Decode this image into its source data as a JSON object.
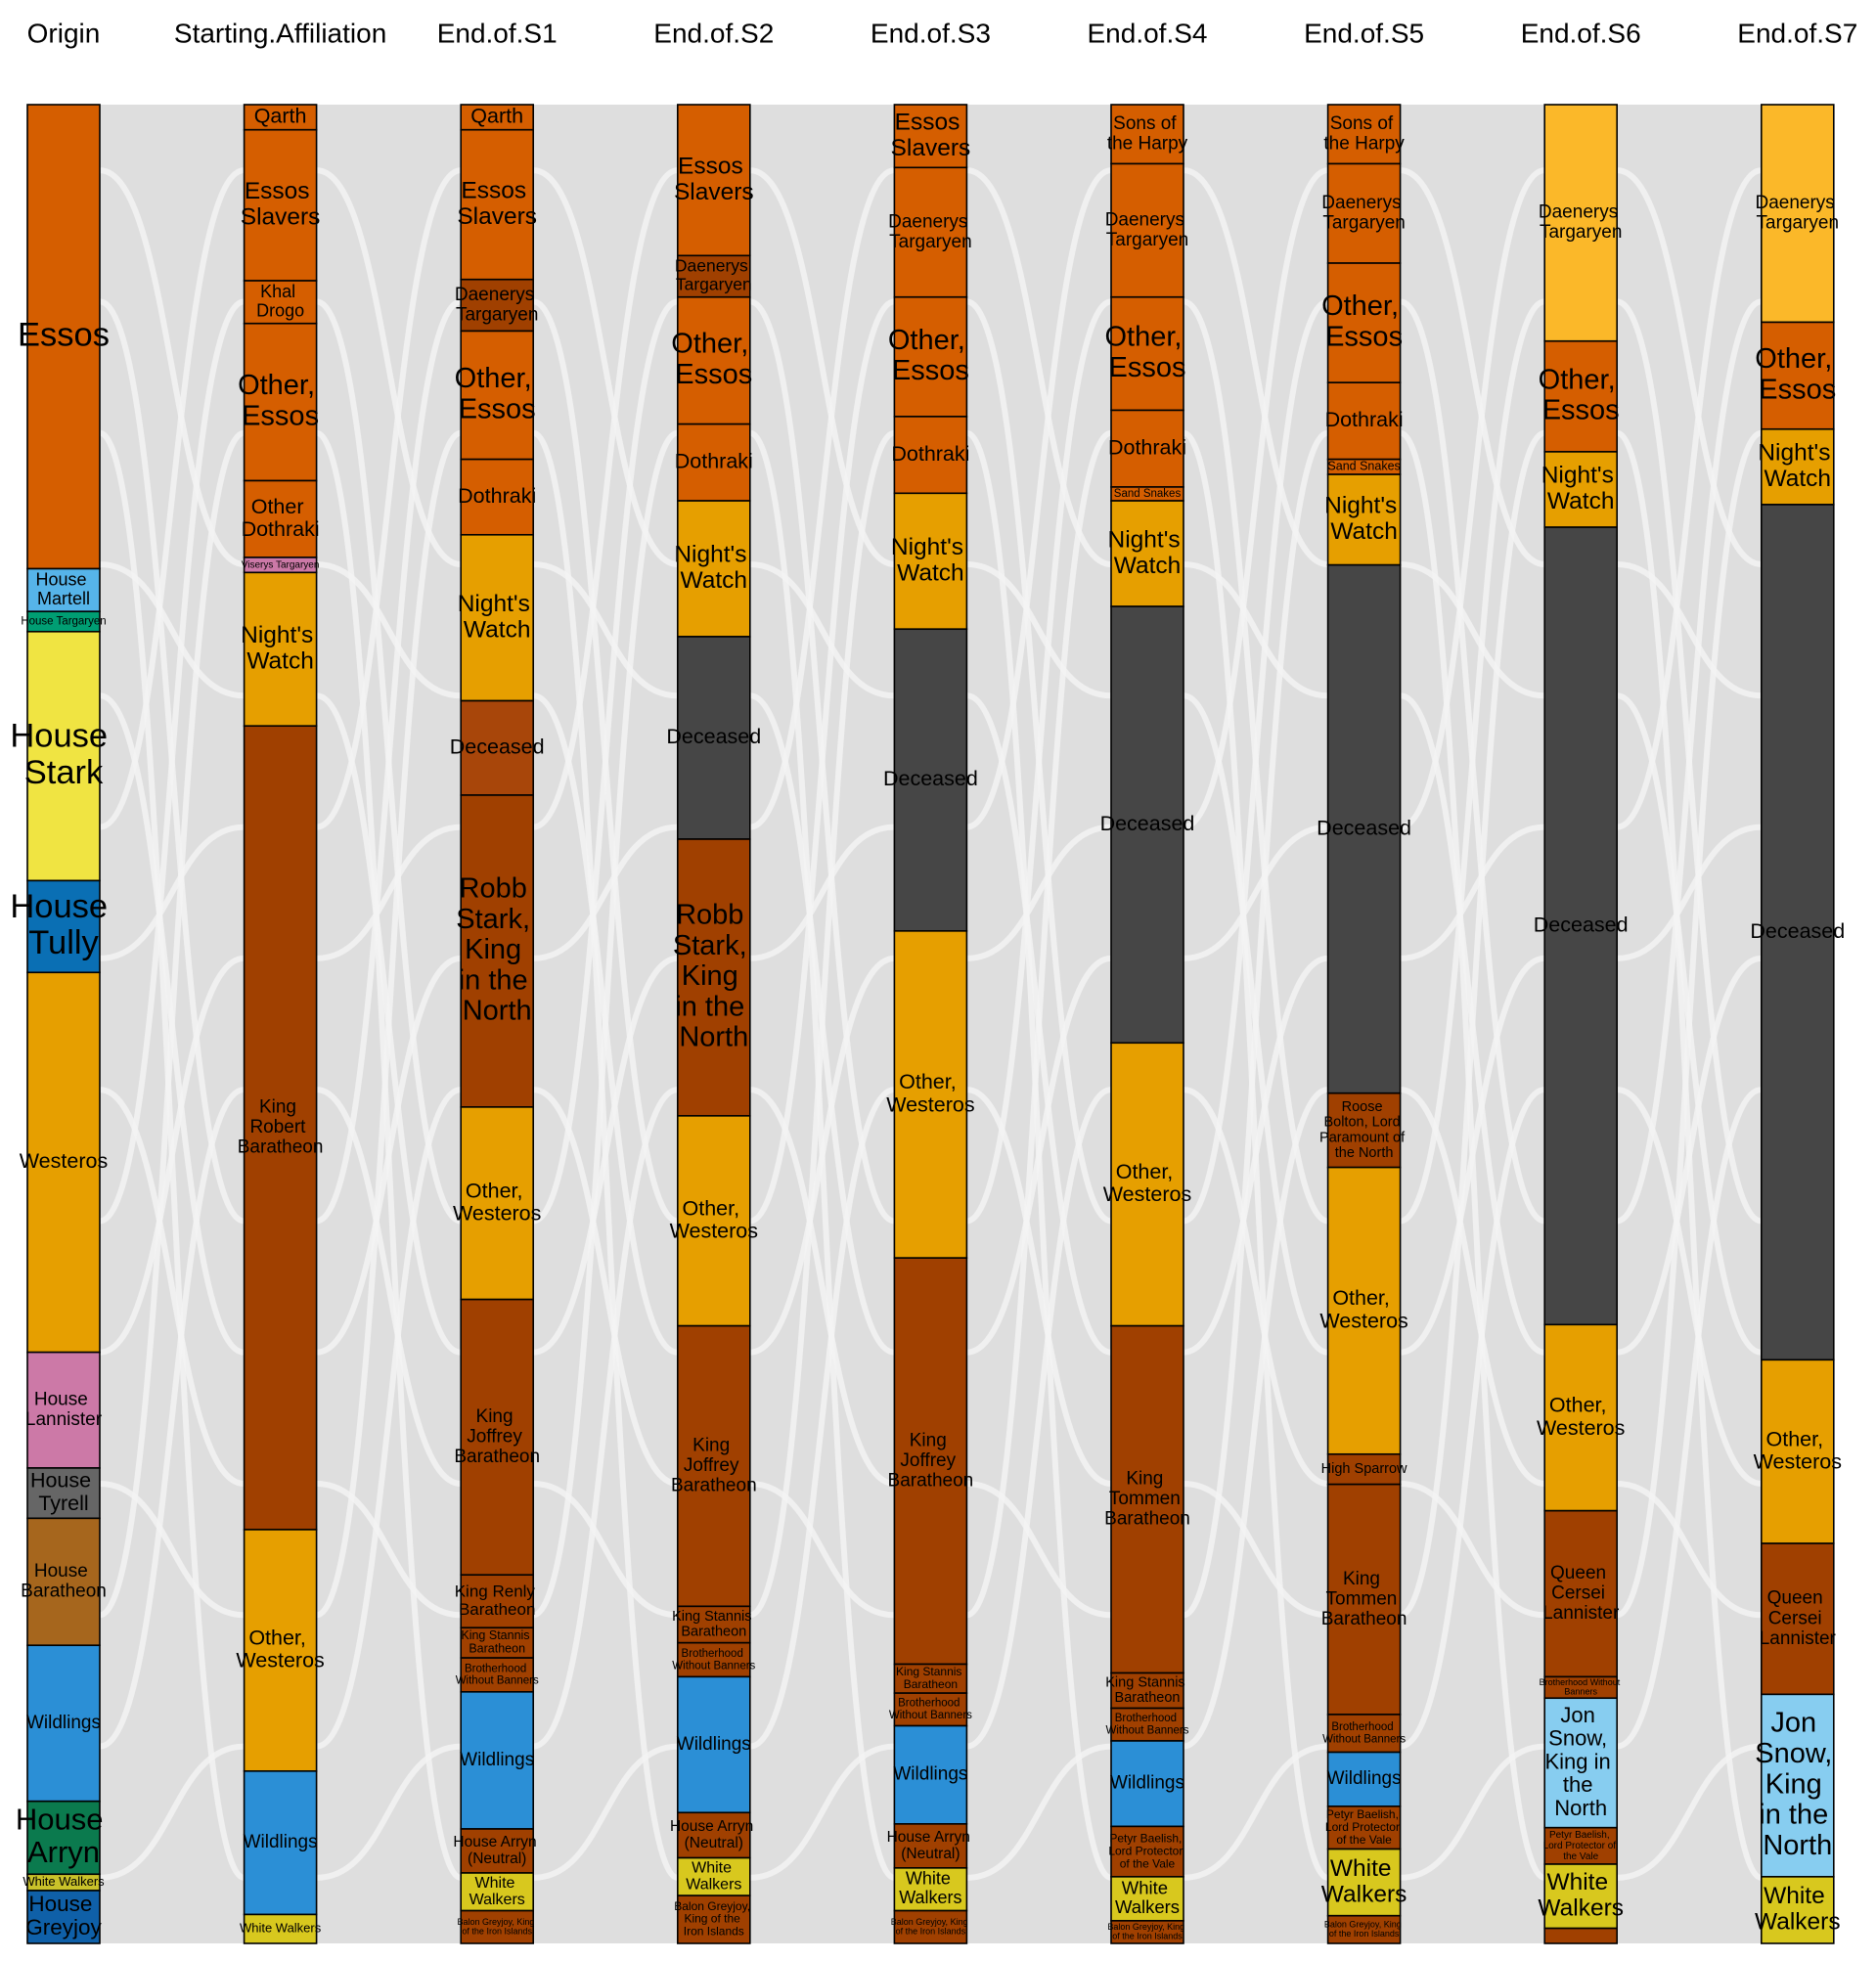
{
  "chart_data": {
    "type": "alluvial",
    "columns": [
      {
        "name": "Origin",
        "nodes": [
          {
            "label": "Essos",
            "value": 369,
            "color": "#d55e00"
          },
          {
            "label": "House Martell",
            "value": 34,
            "color": "#56b4e9"
          },
          {
            "label": "House Targaryen",
            "value": 16,
            "color": "#009e73"
          },
          {
            "label": "House Stark",
            "value": 198,
            "color": "#f0e442"
          },
          {
            "label": "House Tully",
            "value": 73,
            "color": "#0a6fb4"
          },
          {
            "label": "Westeros",
            "value": 302,
            "color": "#e69f00"
          },
          {
            "label": "House Lannister",
            "value": 92,
            "color": "#cc79a7"
          },
          {
            "label": "House Tyrell",
            "value": 40,
            "color": "#666666"
          },
          {
            "label": "House Baratheon",
            "value": 101,
            "color": "#a6661d"
          },
          {
            "label": "Wildlings",
            "value": 124,
            "color": "#2b8fd6"
          },
          {
            "label": "House Arryn",
            "value": 58,
            "color": "#0b7a4e"
          },
          {
            "label": "White Walkers",
            "value": 13,
            "color": "#c9c22a"
          },
          {
            "label": "House Greyjoy",
            "value": 42,
            "color": "#0f60a8"
          }
        ]
      },
      {
        "name": "Starting.Affiliation",
        "nodes": [
          {
            "label": "Qarth",
            "value": 20,
            "color": "#d55e00"
          },
          {
            "label": "Essos Slavers",
            "value": 120,
            "color": "#d55e00"
          },
          {
            "label": "Khal Drogo",
            "value": 34,
            "color": "#d55e00"
          },
          {
            "label": "Other, Essos",
            "value": 125,
            "color": "#d55e00"
          },
          {
            "label": "Other Dothraki",
            "value": 61,
            "color": "#d55e00"
          },
          {
            "label": "Viserys Targaryen",
            "value": 12,
            "color": "#cc79a7"
          },
          {
            "label": "Night's Watch",
            "value": 122,
            "color": "#e69f00"
          },
          {
            "label": "King Robert Baratheon",
            "value": 639,
            "color": "#a04000"
          },
          {
            "label": "Other, Westeros",
            "value": 192,
            "color": "#e69f00"
          },
          {
            "label": "Wildlings",
            "value": 114,
            "color": "#2b8fd6"
          },
          {
            "label": "White Walkers",
            "value": 23,
            "color": "#d8c81e"
          }
        ]
      },
      {
        "name": "End.of.S1",
        "nodes": [
          {
            "label": "Qarth",
            "value": 20,
            "color": "#d55e00"
          },
          {
            "label": "Essos Slavers",
            "value": 119,
            "color": "#d55e00"
          },
          {
            "label": "Daenerys Targaryen",
            "value": 41,
            "color": "#a04000"
          },
          {
            "label": "Other, Essos",
            "value": 102,
            "color": "#d55e00"
          },
          {
            "label": "Dothraki",
            "value": 60,
            "color": "#d55e00"
          },
          {
            "label": "Night's Watch",
            "value": 132,
            "color": "#e69f00"
          },
          {
            "label": "Deceased",
            "value": 75,
            "color": "#a8460a"
          },
          {
            "label": "Robb Stark, King in the North",
            "value": 248,
            "color": "#a04000"
          },
          {
            "label": "Other, Westeros",
            "value": 153,
            "color": "#e69f00"
          },
          {
            "label": "King Joffrey Baratheon",
            "value": 219,
            "color": "#a04000"
          },
          {
            "label": "King Renly Baratheon",
            "value": 42,
            "color": "#a04000"
          },
          {
            "label": "King Stannis Baratheon",
            "value": 24,
            "color": "#a04000"
          },
          {
            "label": "Brotherhood Without Banners",
            "value": 27,
            "color": "#a04000"
          },
          {
            "label": "Wildlings",
            "value": 109,
            "color": "#2b8fd6"
          },
          {
            "label": "House Arryn (Neutral)",
            "value": 35,
            "color": "#a04000"
          },
          {
            "label": "White Walkers",
            "value": 30,
            "color": "#d8c81e"
          },
          {
            "label": "Balon Greyjoy, King of the Iron Islands",
            "value": 26,
            "color": "#a04000"
          }
        ]
      },
      {
        "name": "End.of.S2",
        "nodes": [
          {
            "label": "Essos Slavers",
            "value": 120,
            "color": "#d55e00"
          },
          {
            "label": "Daenerys Targaryen",
            "value": 33,
            "color": "#a04000"
          },
          {
            "label": "Other, Essos",
            "value": 101,
            "color": "#d55e00"
          },
          {
            "label": "Dothraki",
            "value": 61,
            "color": "#d55e00"
          },
          {
            "label": "Night's Watch",
            "value": 108,
            "color": "#e69f00"
          },
          {
            "label": "Deceased",
            "value": 161,
            "color": "#464646"
          },
          {
            "label": "Robb Stark, King in the North",
            "value": 220,
            "color": "#a04000"
          },
          {
            "label": "Other, Westeros",
            "value": 167,
            "color": "#e69f00"
          },
          {
            "label": "King Joffrey Baratheon",
            "value": 223,
            "color": "#a04000"
          },
          {
            "label": "King Stannis Baratheon",
            "value": 29,
            "color": "#a04000"
          },
          {
            "label": "Brotherhood Without Banners",
            "value": 27,
            "color": "#a04000"
          },
          {
            "label": "Wildlings",
            "value": 108,
            "color": "#2b8fd6"
          },
          {
            "label": "House Arryn (Neutral)",
            "value": 36,
            "color": "#a04000"
          },
          {
            "label": "White Walkers",
            "value": 30,
            "color": "#d8c81e"
          },
          {
            "label": "Balon Greyjoy, King of the Iron Islands",
            "value": 38,
            "color": "#a04000"
          }
        ]
      },
      {
        "name": "End.of.S3",
        "nodes": [
          {
            "label": "Essos Slavers",
            "value": 50,
            "color": "#d55e00"
          },
          {
            "label": "Daenerys Targaryen",
            "value": 103,
            "color": "#d55e00"
          },
          {
            "label": "Other, Essos",
            "value": 95,
            "color": "#d55e00"
          },
          {
            "label": "Dothraki",
            "value": 61,
            "color": "#d55e00"
          },
          {
            "label": "Night's Watch",
            "value": 108,
            "color": "#e69f00"
          },
          {
            "label": "Deceased",
            "value": 240,
            "color": "#464646"
          },
          {
            "label": "Other, Westeros",
            "value": 260,
            "color": "#e69f00"
          },
          {
            "label": "King Joffrey Baratheon",
            "value": 323,
            "color": "#a04000"
          },
          {
            "label": "King Stannis Baratheon",
            "value": 23,
            "color": "#a04000"
          },
          {
            "label": "Brotherhood Without Banners",
            "value": 26,
            "color": "#a04000"
          },
          {
            "label": "Wildlings",
            "value": 78,
            "color": "#2b8fd6"
          },
          {
            "label": "House Arryn (Neutral)",
            "value": 35,
            "color": "#a04000"
          },
          {
            "label": "White Walkers",
            "value": 34,
            "color": "#d8c81e"
          },
          {
            "label": "Balon Greyjoy, King of the Iron Islands",
            "value": 26,
            "color": "#a04000"
          }
        ]
      },
      {
        "name": "End.of.S4",
        "nodes": [
          {
            "label": "Sons of the Harpy",
            "value": 47,
            "color": "#d55e00"
          },
          {
            "label": "Daenerys Targaryen",
            "value": 106,
            "color": "#d55e00"
          },
          {
            "label": "Other, Essos",
            "value": 90,
            "color": "#d55e00"
          },
          {
            "label": "Dothraki",
            "value": 61,
            "color": "#d55e00"
          },
          {
            "label": "Sand Snakes",
            "value": 11,
            "color": "#d55e00"
          },
          {
            "label": "Night's Watch",
            "value": 84,
            "color": "#e69f00"
          },
          {
            "label": "Deceased",
            "value": 347,
            "color": "#464646"
          },
          {
            "label": "Other, Westeros",
            "value": 225,
            "color": "#e69f00"
          },
          {
            "label": "King Tommen Baratheon",
            "value": 276,
            "color": "#a04000"
          },
          {
            "label": "King Stannis Baratheon",
            "value": 28,
            "color": "#a04000"
          },
          {
            "label": "Brotherhood Without Banners",
            "value": 26,
            "color": "#a04000"
          },
          {
            "label": "Wildlings",
            "value": 68,
            "color": "#2b8fd6"
          },
          {
            "label": "Petyr Baelish, Lord Protector of the Vale",
            "value": 40,
            "color": "#a04000"
          },
          {
            "label": "White Walkers",
            "value": 35,
            "color": "#d8c81e"
          },
          {
            "label": "Balon Greyjoy, King of the Iron Islands",
            "value": 18,
            "color": "#a04000"
          }
        ]
      },
      {
        "name": "End.of.S5",
        "nodes": [
          {
            "label": "Sons of the Harpy",
            "value": 47,
            "color": "#d55e00"
          },
          {
            "label": "Daenerys Targaryen",
            "value": 79,
            "color": "#d55e00"
          },
          {
            "label": "Other, Essos",
            "value": 95,
            "color": "#d55e00"
          },
          {
            "label": "Dothraki",
            "value": 61,
            "color": "#d55e00"
          },
          {
            "label": "Sand Snakes",
            "value": 12,
            "color": "#d55e00"
          },
          {
            "label": "Night's Watch",
            "value": 72,
            "color": "#e69f00"
          },
          {
            "label": "Deceased",
            "value": 420,
            "color": "#464646"
          },
          {
            "label": "Roose Bolton, Lord Paramount of the North",
            "value": 59,
            "color": "#a04000"
          },
          {
            "label": "Other, Westeros",
            "value": 228,
            "color": "#e69f00"
          },
          {
            "label": "High Sparrow",
            "value": 24,
            "color": "#a04000"
          },
          {
            "label": "King Tommen Baratheon",
            "value": 183,
            "color": "#a04000"
          },
          {
            "label": "Brotherhood Without Banners",
            "value": 30,
            "color": "#a04000"
          },
          {
            "label": "Wildlings",
            "value": 43,
            "color": "#2b8fd6"
          },
          {
            "label": "Petyr Baelish, Lord Protector of the Vale",
            "value": 34,
            "color": "#a04000"
          },
          {
            "label": "White Walkers",
            "value": 53,
            "color": "#d8c81e"
          },
          {
            "label": "Balon Greyjoy, King of the Iron Islands",
            "value": 22,
            "color": "#a04000"
          }
        ]
      },
      {
        "name": "End.of.S6",
        "nodes": [
          {
            "label": "Daenerys Targaryen",
            "value": 188,
            "color": "#fbb829"
          },
          {
            "label": "Other, Essos",
            "value": 88,
            "color": "#d55e00"
          },
          {
            "label": "Night's Watch",
            "value": 60,
            "color": "#e69f00"
          },
          {
            "label": "Deceased",
            "value": 634,
            "color": "#464646"
          },
          {
            "label": "Other, Westeros",
            "value": 148,
            "color": "#e69f00"
          },
          {
            "label": "Queen Cersei Lannister",
            "value": 132,
            "color": "#a04000"
          },
          {
            "label": "Brotherhood Without Banners",
            "value": 17,
            "color": "#a04000"
          },
          {
            "label": "Jon Snow, King in the North",
            "value": 103,
            "color": "#87cdf0"
          },
          {
            "label": "Petyr Baelish, Lord Protector of the Vale",
            "value": 29,
            "color": "#a04000"
          },
          {
            "label": "White Walkers",
            "value": 51,
            "color": "#d8c81e"
          },
          {
            "label": null,
            "value": 12,
            "color": "#a04000"
          }
        ]
      },
      {
        "name": "End.of.S7",
        "nodes": [
          {
            "label": "Daenerys Targaryen",
            "value": 173,
            "color": "#fbb829"
          },
          {
            "label": "Other, Essos",
            "value": 85,
            "color": "#d55e00"
          },
          {
            "label": "Night's Watch",
            "value": 60,
            "color": "#e69f00"
          },
          {
            "label": "Deceased",
            "value": 680,
            "color": "#464646"
          },
          {
            "label": "Other, Westeros",
            "value": 146,
            "color": "#e69f00"
          },
          {
            "label": "Queen Cersei Lannister",
            "value": 120,
            "color": "#a04000"
          },
          {
            "label": "Jon Snow, King in the North",
            "value": 145,
            "color": "#87cdf0"
          },
          {
            "label": "White Walkers",
            "value": 53,
            "color": "#d8c81e"
          }
        ]
      }
    ]
  }
}
